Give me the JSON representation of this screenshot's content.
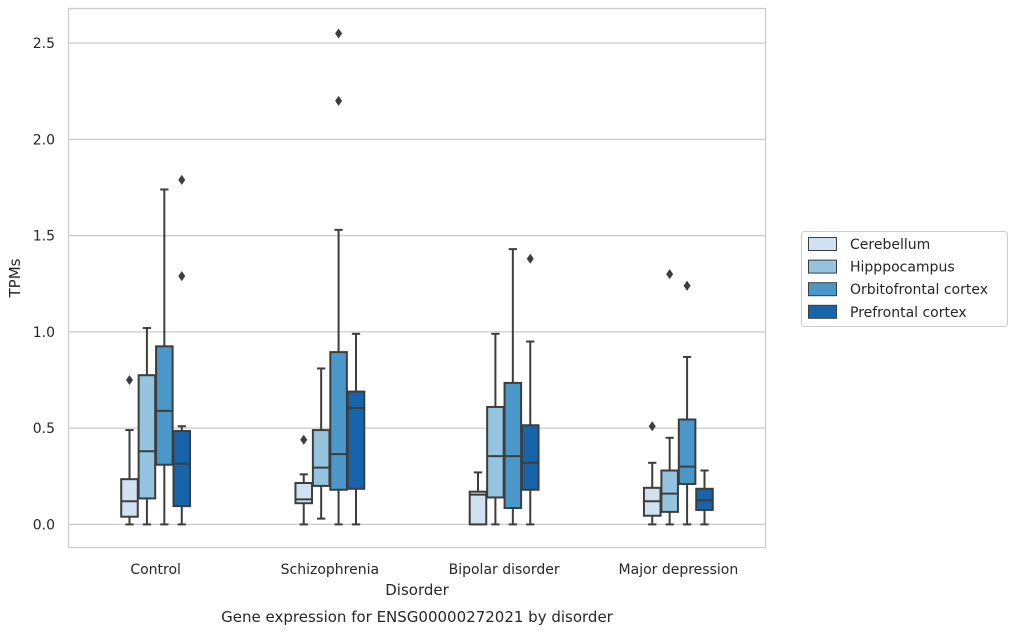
{
  "caption": "Gene expression for ENSG00000272021 by disorder",
  "chart_data": {
    "type": "boxplot",
    "xlabel": "Disorder",
    "ylabel": "TPMs",
    "ylim": [
      -0.12,
      2.68
    ],
    "yticks": [
      0.0,
      0.5,
      1.0,
      1.5,
      2.0,
      2.5
    ],
    "ytick_labels": [
      "0.0",
      "0.5",
      "1.0",
      "1.5",
      "2.0",
      "2.5"
    ],
    "grid": "horizontal",
    "legend_position": "right",
    "categories": [
      "Control",
      "Schizophrenia",
      "Bipolar disorder",
      "Major depression"
    ],
    "series": [
      {
        "name": "Cerebellum",
        "color": "#d0e1f2",
        "boxes": [
          {
            "whislo": 0.0,
            "q1": 0.04,
            "med": 0.12,
            "q3": 0.235,
            "whishi": 0.49,
            "fliers": [
              0.75
            ]
          },
          {
            "whislo": 0.0,
            "q1": 0.11,
            "med": 0.13,
            "q3": 0.215,
            "whishi": 0.26,
            "fliers": [
              0.44
            ]
          },
          {
            "whislo": 0.0,
            "q1": 0.0,
            "med": 0.155,
            "q3": 0.17,
            "whishi": 0.27,
            "fliers": []
          },
          {
            "whislo": 0.0,
            "q1": 0.045,
            "med": 0.12,
            "q3": 0.19,
            "whishi": 0.32,
            "fliers": [
              0.51
            ]
          }
        ]
      },
      {
        "name": "Hipppocampus",
        "color": "#94c4df",
        "boxes": [
          {
            "whislo": 0.0,
            "q1": 0.135,
            "med": 0.38,
            "q3": 0.775,
            "whishi": 1.02,
            "fliers": []
          },
          {
            "whislo": 0.03,
            "q1": 0.2,
            "med": 0.295,
            "q3": 0.49,
            "whishi": 0.81,
            "fliers": []
          },
          {
            "whislo": 0.0,
            "q1": 0.14,
            "med": 0.355,
            "q3": 0.61,
            "whishi": 0.99,
            "fliers": []
          },
          {
            "whislo": 0.0,
            "q1": 0.065,
            "med": 0.16,
            "q3": 0.28,
            "whishi": 0.45,
            "fliers": [
              1.3
            ]
          }
        ]
      },
      {
        "name": "Orbitofrontal cortex",
        "color": "#4a98c9",
        "boxes": [
          {
            "whislo": 0.0,
            "q1": 0.31,
            "med": 0.59,
            "q3": 0.925,
            "whishi": 1.74,
            "fliers": []
          },
          {
            "whislo": 0.0,
            "q1": 0.18,
            "med": 0.365,
            "q3": 0.895,
            "whishi": 1.53,
            "fliers": [
              2.2,
              2.55
            ]
          },
          {
            "whislo": 0.0,
            "q1": 0.085,
            "med": 0.355,
            "q3": 0.735,
            "whishi": 1.43,
            "fliers": []
          },
          {
            "whislo": 0.0,
            "q1": 0.21,
            "med": 0.3,
            "q3": 0.545,
            "whishi": 0.87,
            "fliers": [
              1.24
            ]
          }
        ]
      },
      {
        "name": "Prefrontal cortex",
        "color": "#1764ab",
        "boxes": [
          {
            "whislo": 0.0,
            "q1": 0.095,
            "med": 0.315,
            "q3": 0.485,
            "whishi": 0.51,
            "fliers": [
              1.29,
              1.79
            ]
          },
          {
            "whislo": 0.0,
            "q1": 0.185,
            "med": 0.605,
            "q3": 0.69,
            "whishi": 0.99,
            "fliers": []
          },
          {
            "whislo": 0.0,
            "q1": 0.18,
            "med": 0.32,
            "q3": 0.515,
            "whishi": 0.95,
            "fliers": [
              1.38
            ]
          },
          {
            "whislo": 0.0,
            "q1": 0.075,
            "med": 0.125,
            "q3": 0.185,
            "whishi": 0.28,
            "fliers": []
          }
        ]
      }
    ]
  }
}
